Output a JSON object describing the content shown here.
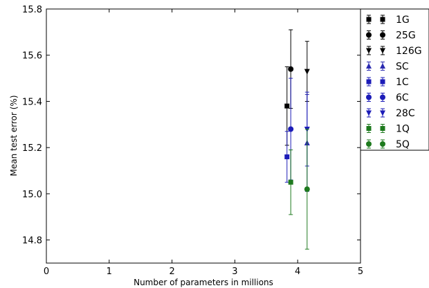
{
  "chart_data": {
    "type": "scatter",
    "title": "",
    "xlabel": "Number of parameters in millions",
    "ylabel": "Mean test error (%)",
    "xlim": [
      0,
      5
    ],
    "ylim": [
      14.7,
      15.8
    ],
    "x_ticks": [
      "0",
      "1",
      "2",
      "3",
      "4",
      "5"
    ],
    "y_ticks": [
      "14.8",
      "15.0",
      "15.2",
      "15.4",
      "15.6",
      "15.8"
    ],
    "grid": false,
    "legend_position": "outside-right",
    "error_bars": true,
    "series": [
      {
        "name": "1G",
        "marker": "square",
        "color": "#000000",
        "x": 3.83,
        "y": 15.38,
        "yerr_low": 15.21,
        "yerr_high": 15.55
      },
      {
        "name": "25G",
        "marker": "circle",
        "color": "#000000",
        "x": 3.89,
        "y": 15.54,
        "yerr_low": 15.37,
        "yerr_high": 15.71
      },
      {
        "name": "126G",
        "marker": "triangle-down",
        "color": "#000000",
        "x": 4.15,
        "y": 15.53,
        "yerr_low": 15.4,
        "yerr_high": 15.66
      },
      {
        "name": "SC",
        "marker": "triangle-up",
        "color": "#2a2ab0",
        "x": 4.15,
        "y": 15.22,
        "yerr_low": 15.01,
        "yerr_high": 15.43
      },
      {
        "name": "1C",
        "marker": "square",
        "color": "#1c1cb8",
        "x": 3.83,
        "y": 15.16,
        "yerr_low": 15.05,
        "yerr_high": 15.27
      },
      {
        "name": "6C",
        "marker": "circle",
        "color": "#1c1cb8",
        "x": 3.89,
        "y": 15.28,
        "yerr_low": 15.06,
        "yerr_high": 15.5
      },
      {
        "name": "28C",
        "marker": "triangle-down",
        "color": "#1c1cb8",
        "x": 4.15,
        "y": 15.28,
        "yerr_low": 15.12,
        "yerr_high": 15.44
      },
      {
        "name": "1Q",
        "marker": "square",
        "color": "#1e7a1e",
        "x": 3.89,
        "y": 15.05,
        "yerr_low": 14.91,
        "yerr_high": 15.19
      },
      {
        "name": "5Q",
        "marker": "circle",
        "color": "#1e7a1e",
        "x": 4.15,
        "y": 15.02,
        "yerr_low": 14.76,
        "yerr_high": 15.28
      }
    ]
  }
}
